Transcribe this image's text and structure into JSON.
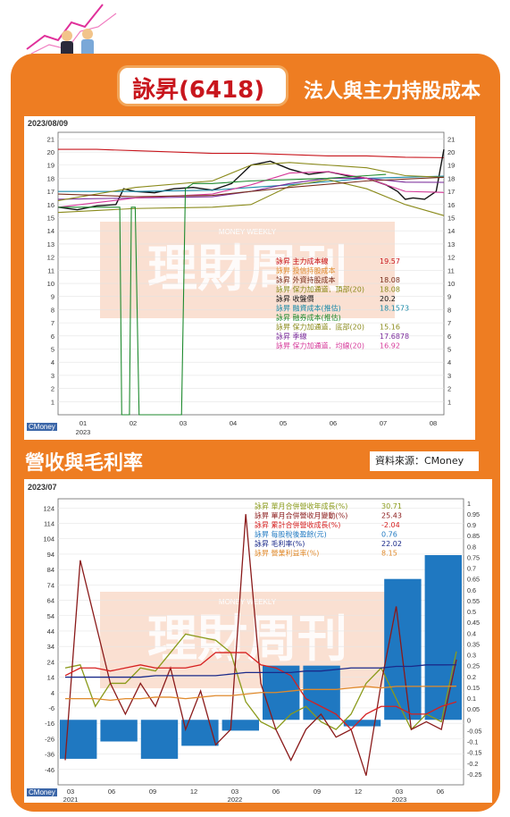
{
  "header": {
    "stock_title": "詠昇(6418)",
    "subtitle": "法人與主力持股成本"
  },
  "section2": {
    "title": "營收與毛利率",
    "source": "資料來源：CMoney"
  },
  "watermark": {
    "main": "理財周刊",
    "sub": "MONEY WEEKLY"
  },
  "colors": {
    "frame": "#ee7d22",
    "title_red": "#c8161d",
    "bar_blue": "#1f78c1"
  },
  "chart1_meta": {
    "date": "2023/08/09",
    "logo": "CMoney",
    "year_label": "2023"
  },
  "chart2_meta": {
    "date": "2023/07",
    "logo": "CMoney",
    "year_labels": [
      "2021",
      "2022",
      "2023"
    ]
  },
  "chart_data": [
    {
      "type": "line",
      "yticks": [
        1,
        2,
        3,
        4,
        5,
        6,
        7,
        8,
        9,
        10,
        11,
        12,
        13,
        14,
        15,
        16,
        17,
        18,
        19,
        20,
        21
      ],
      "ylim": [
        0,
        21.5
      ],
      "xticks": [
        "01",
        "02",
        "03",
        "04",
        "05",
        "06",
        "07",
        "08"
      ],
      "legend": [
        {
          "label": "詠昇  主力成本線",
          "value": "19.57",
          "color": "#c8161d"
        },
        {
          "label": "詠昇  投信持股成本",
          "value": "",
          "color": "#e08a2c"
        },
        {
          "label": "詠昇  外資持股成本",
          "value": "18.08",
          "color": "#7a2f1c"
        },
        {
          "label": "詠昇  保力加通道．頂部(20)",
          "value": "18.08",
          "color": "#8a8a1a"
        },
        {
          "label": "詠昇  收盤價",
          "value": "20.2",
          "color": "#111111"
        },
        {
          "label": "詠昇  融資成本(推估)",
          "value": "18.1573",
          "color": "#1a8aa8"
        },
        {
          "label": "詠昇  融券成本(推估)",
          "value": "",
          "color": "#1e8a2e"
        },
        {
          "label": "詠昇  保力加通道．底部(20)",
          "value": "15.16",
          "color": "#8a8a1a"
        },
        {
          "label": "詠昇  季線",
          "value": "17.6878",
          "color": "#7a2a9a"
        },
        {
          "label": "詠昇  保力加通道．均線(20)",
          "value": "16.92",
          "color": "#d63a9a"
        }
      ],
      "series": [
        {
          "name": "主力成本線",
          "color": "#c8161d",
          "x": [
            0,
            10,
            20,
            30,
            40,
            50,
            60,
            70,
            80,
            90,
            100
          ],
          "values": [
            20.2,
            20.2,
            20.1,
            20.0,
            19.9,
            19.9,
            19.8,
            19.7,
            19.7,
            19.6,
            19.57
          ]
        },
        {
          "name": "收盤價",
          "color": "#111111",
          "x": [
            0,
            5,
            10,
            15,
            17,
            20,
            25,
            30,
            35,
            40,
            45,
            50,
            55,
            60,
            65,
            70,
            75,
            80,
            85,
            88,
            90,
            92,
            95,
            98,
            100
          ],
          "values": [
            15.8,
            15.6,
            15.9,
            16.0,
            17.2,
            17.0,
            16.9,
            17.2,
            17.3,
            17.1,
            17.6,
            19.0,
            19.3,
            18.7,
            18.3,
            18.5,
            18.2,
            18.0,
            17.5,
            17.0,
            16.4,
            16.5,
            16.4,
            17.0,
            20.2
          ]
        },
        {
          "name": "融資成本(推估)",
          "color": "#1a8aa8",
          "x": [
            0,
            20,
            40,
            60,
            80,
            100
          ],
          "values": [
            17.0,
            17.0,
            17.1,
            17.5,
            18.0,
            18.16
          ]
        },
        {
          "name": "季線",
          "color": "#7a2a9a",
          "x": [
            0,
            20,
            40,
            50,
            60,
            70,
            80,
            90,
            100
          ],
          "values": [
            16.4,
            16.5,
            16.6,
            17.0,
            17.6,
            18.0,
            18.0,
            17.7,
            17.69
          ]
        },
        {
          "name": "保力加通道．均線(20)",
          "color": "#d63a9a",
          "x": [
            0,
            20,
            40,
            50,
            60,
            70,
            80,
            90,
            100
          ],
          "values": [
            15.8,
            16.5,
            16.8,
            17.5,
            18.4,
            18.5,
            18.0,
            17.0,
            16.92
          ]
        },
        {
          "name": "保力加通道．頂部(20)",
          "color": "#8a8a1a",
          "x": [
            0,
            20,
            40,
            50,
            60,
            70,
            80,
            90,
            100
          ],
          "values": [
            16.3,
            17.3,
            17.8,
            19.0,
            19.2,
            19.0,
            18.8,
            18.2,
            18.08
          ]
        },
        {
          "name": "保力加通道．底部(20)",
          "color": "#8a8a1a",
          "x": [
            0,
            20,
            40,
            50,
            60,
            70,
            80,
            90,
            100
          ],
          "values": [
            15.4,
            15.7,
            15.8,
            16.0,
            17.4,
            17.9,
            17.2,
            16.0,
            15.16
          ]
        },
        {
          "name": "外資持股成本",
          "color": "#7a2f1c",
          "x": [
            0,
            20,
            40,
            60,
            80,
            100
          ],
          "values": [
            16.8,
            16.6,
            16.7,
            17.3,
            17.8,
            18.08
          ]
        },
        {
          "name": "融券成本(推估)",
          "color": "#1e8a2e",
          "x": [
            0,
            16,
            16.5,
            18.5,
            19,
            20,
            21,
            32,
            33,
            35,
            40,
            50,
            60,
            70,
            80,
            85
          ],
          "values": [
            15.8,
            15.8,
            0,
            0,
            15.8,
            15.8,
            0,
            0,
            17.2,
            17.6,
            17.6,
            17.8,
            17.9,
            18.0,
            18.2,
            18.3
          ]
        }
      ]
    },
    {
      "type": "bar",
      "left_yticks": [
        -46,
        -36,
        -26,
        -16,
        -6,
        4,
        14,
        24,
        34,
        44,
        54,
        64,
        74,
        84,
        94,
        104,
        114,
        124
      ],
      "right_yticks": [
        -0.25,
        -0.2,
        -0.15,
        -0.1,
        -0.05,
        0,
        0.05,
        0.1,
        0.15,
        0.2,
        0.25,
        0.3,
        0.35,
        0.4,
        0.45,
        0.5,
        0.55,
        0.6,
        0.65,
        0.7,
        0.75,
        0.8,
        0.85,
        0.9,
        0.95,
        1
      ],
      "xticks": [
        "03",
        "06",
        "09",
        "12",
        "03",
        "06",
        "09",
        "12",
        "03",
        "06"
      ],
      "legend": [
        {
          "label": "詠昇  單月合併營收年成長(%)",
          "value": "30.71",
          "color": "#8a9a1a"
        },
        {
          "label": "詠昇  單月合併營收月變動(%)",
          "value": "25.43",
          "color": "#8a1a1a"
        },
        {
          "label": "詠昇  累計合併營收成長(%)",
          "value": "-2.04",
          "color": "#d62020"
        },
        {
          "label": "詠昇  每股稅後盈餘(元)",
          "value": "0.76",
          "color": "#1f78c1"
        },
        {
          "label": "詠昇  毛利率(%)",
          "value": "22.02",
          "color": "#1a2a8a"
        },
        {
          "label": "詠昇  營業利益率(%)",
          "value": "8.15",
          "color": "#e08a2c"
        }
      ],
      "eps_bars": {
        "name": "每股稅後盈餘",
        "quarters": [
          "2021Q1",
          "2021Q2",
          "2021Q3",
          "2021Q4",
          "2022Q1",
          "2022Q2",
          "2022Q3",
          "2022Q4",
          "2023Q1",
          "2023Q2"
        ],
        "values": [
          -0.18,
          -0.1,
          -0.18,
          -0.12,
          -0.05,
          0.25,
          0.25,
          -0.03,
          0.65,
          0.76
        ]
      },
      "series": [
        {
          "name": "單月合併營收年成長",
          "color": "#8a9a1a",
          "values": [
            20,
            22,
            -5,
            10,
            10,
            20,
            18,
            30,
            42,
            40,
            38,
            30,
            -2,
            -15,
            -20,
            -10,
            -5,
            -15,
            -20,
            -10,
            10,
            20,
            0,
            -20,
            -10,
            -15,
            30.71
          ]
        },
        {
          "name": "單月合併營收月變動",
          "color": "#8a1a1a",
          "values": [
            -40,
            90,
            50,
            10,
            -10,
            10,
            -5,
            20,
            -20,
            5,
            -30,
            -20,
            120,
            10,
            -20,
            -40,
            -20,
            -10,
            -25,
            -20,
            -50,
            10,
            60,
            -20,
            -15,
            -20,
            25.43
          ]
        },
        {
          "name": "累計合併營收成長",
          "color": "#d62020",
          "values": [
            15,
            20,
            20,
            18,
            20,
            22,
            20,
            20,
            20,
            22,
            30,
            30,
            30,
            22,
            20,
            15,
            0,
            -5,
            -10,
            -20,
            -10,
            -5,
            -5,
            -10,
            -10,
            -5,
            -2.04
          ]
        },
        {
          "name": "毛利率",
          "color": "#1a2a8a",
          "values": [
            14,
            14,
            14,
            14,
            14,
            14,
            15,
            15,
            15,
            15,
            15,
            16,
            17,
            17,
            17,
            17,
            18,
            18,
            19,
            20,
            20,
            20,
            21,
            21,
            22,
            22,
            22.02
          ]
        },
        {
          "name": "營業利益率",
          "color": "#e08a2c",
          "values": [
            0,
            0,
            0,
            -1,
            0,
            0,
            1,
            1,
            0,
            1,
            2,
            2,
            3,
            4,
            4,
            5,
            6,
            6,
            6,
            7,
            8,
            7,
            8,
            8,
            8,
            8,
            8.15
          ]
        }
      ]
    }
  ]
}
